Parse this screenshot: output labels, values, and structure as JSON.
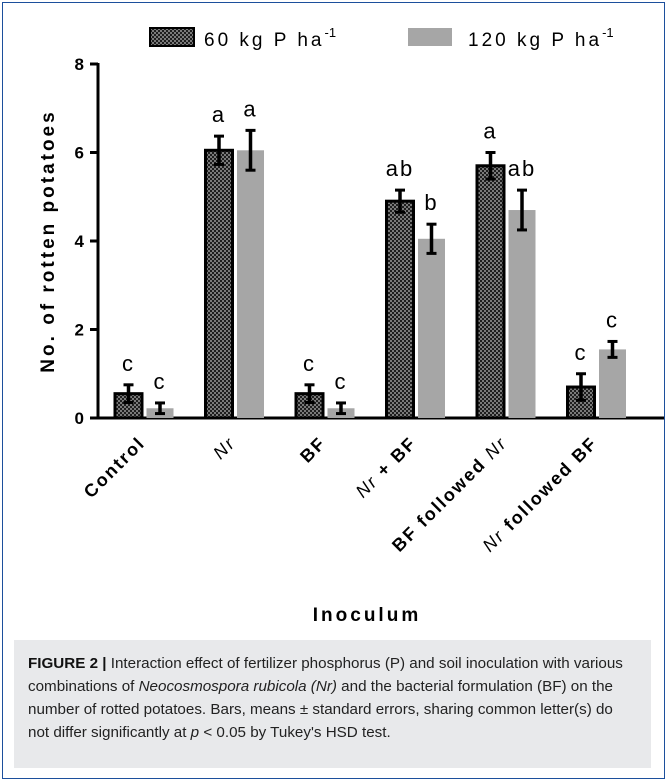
{
  "chart_data": {
    "type": "bar",
    "ylabel": "No. of rotten potatoes",
    "xlabel": "Inoculum",
    "ylim": [
      0,
      8
    ],
    "yticks": [
      0,
      2,
      4,
      6,
      8
    ],
    "grid": false,
    "legend_position": "top",
    "categories": [
      "Control",
      "Nr",
      "BF",
      "Nr + BF",
      "BF followed Nr",
      "Nr followed BF"
    ],
    "category_labels": [
      [
        {
          "t": "Control",
          "i": false
        }
      ],
      [
        {
          "t": "Nr",
          "i": true
        }
      ],
      [
        {
          "t": "BF",
          "i": false
        }
      ],
      [
        {
          "t": "Nr",
          "i": true
        },
        {
          "t": " + BF",
          "i": false
        }
      ],
      [
        {
          "t": "BF followed ",
          "i": false
        },
        {
          "t": "Nr",
          "i": true
        }
      ],
      [
        {
          "t": "Nr",
          "i": true
        },
        {
          "t": " followed BF",
          "i": false
        }
      ]
    ],
    "series": [
      {
        "name": "60 kg P ha",
        "name_sup": "-1",
        "color": "#222222",
        "pattern": "checkered",
        "values": [
          0.55,
          6.05,
          0.55,
          4.9,
          5.7,
          0.7
        ],
        "errors": [
          0.2,
          0.32,
          0.2,
          0.25,
          0.3,
          0.3
        ],
        "letters": [
          "c",
          "a",
          "c",
          "ab",
          "a",
          "c"
        ]
      },
      {
        "name": "120 kg P ha",
        "name_sup": "-1",
        "color": "#a6a6a6",
        "pattern": "solid",
        "values": [
          0.22,
          6.05,
          0.22,
          4.05,
          4.7,
          1.55
        ],
        "errors": [
          0.12,
          0.45,
          0.12,
          0.33,
          0.45,
          0.18
        ],
        "letters": [
          "c",
          "a",
          "c",
          "b",
          "ab",
          "c"
        ]
      }
    ]
  },
  "caption": {
    "label": "FIGURE 2 |",
    "parts": [
      {
        "t": " Interaction effect of fertilizer phosphorus (P) and soil inoculation with various combinations of ",
        "s": "n"
      },
      {
        "t": "Neocosmospora rubicola (Nr)",
        "s": "i"
      },
      {
        "t": " and the bacterial formulation (BF) on the number of rotted potatoes. Bars, means ± standard errors, sharing common letter(s) do not differ significantly at ",
        "s": "n"
      },
      {
        "t": "p",
        "s": "i"
      },
      {
        "t": " < 0.05 by Tukey's HSD test.",
        "s": "n"
      }
    ]
  }
}
